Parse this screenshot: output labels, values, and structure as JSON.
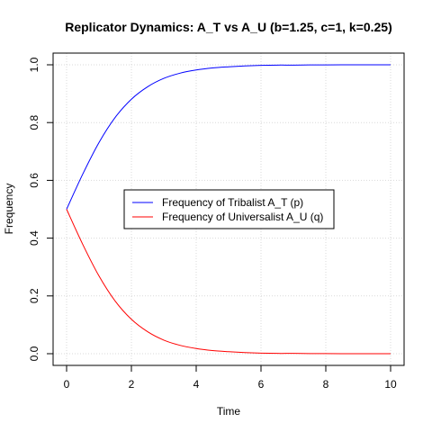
{
  "chart_data": {
    "type": "line",
    "title": "Replicator Dynamics: A_T vs A_U (b=1.25, c=1, k=0.25)",
    "xlabel": "Time",
    "ylabel": "Frequency",
    "xlim": [
      0,
      10
    ],
    "ylim": [
      0.0,
      1.0
    ],
    "x_ticks": [
      "0",
      "2",
      "4",
      "6",
      "8",
      "10"
    ],
    "y_ticks": [
      "0.0",
      "0.2",
      "0.4",
      "0.6",
      "0.8",
      "1.0"
    ],
    "grid": true,
    "legend_position": "center",
    "x": [
      0,
      0.5,
      1,
      1.5,
      2,
      2.5,
      3,
      3.5,
      4,
      4.5,
      5,
      5.5,
      6,
      6.5,
      7,
      7.5,
      8,
      8.5,
      9,
      9.5,
      10
    ],
    "series": [
      {
        "name": "Frequency of Tribalist A_T (p)",
        "color": "#0000ff",
        "values": [
          0.5,
          0.622,
          0.731,
          0.818,
          0.881,
          0.924,
          0.953,
          0.971,
          0.982,
          0.989,
          0.993,
          0.996,
          0.998,
          0.999,
          0.999,
          0.9995,
          0.9997,
          0.9998,
          0.9999,
          0.9999,
          1.0
        ]
      },
      {
        "name": "Frequency of Universalist A_U (q)",
        "color": "#ff0000",
        "values": [
          0.5,
          0.378,
          0.269,
          0.182,
          0.119,
          0.076,
          0.047,
          0.029,
          0.018,
          0.011,
          0.007,
          0.004,
          0.002,
          0.001,
          0.001,
          0.0005,
          0.0003,
          0.0002,
          0.0001,
          0.0001,
          0.0
        ]
      }
    ]
  }
}
